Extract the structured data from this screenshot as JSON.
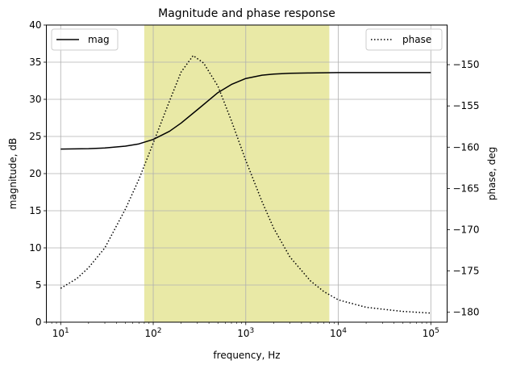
{
  "chart_data": {
    "type": "line",
    "title": "Magnitude and phase response",
    "xlabel": "frequency, Hz",
    "ylabel_left": "magnitude, dB",
    "ylabel_right": "phase, deg",
    "x_scale": "log",
    "xlim": [
      7,
      150000
    ],
    "ylim_left": [
      0,
      40
    ],
    "ylim_right": [
      -181.2,
      -145.2
    ],
    "grid": true,
    "x_ticks": [
      {
        "value": 10,
        "base": "10",
        "exp": "1"
      },
      {
        "value": 100,
        "base": "10",
        "exp": "2"
      },
      {
        "value": 1000,
        "base": "10",
        "exp": "3"
      },
      {
        "value": 10000,
        "base": "10",
        "exp": "4"
      },
      {
        "value": 100000,
        "base": "10",
        "exp": "5"
      }
    ],
    "y_ticks_left": [
      "0",
      "5",
      "10",
      "15",
      "20",
      "25",
      "30",
      "35",
      "40"
    ],
    "y_ticks_right": [
      "−150",
      "−155",
      "−160",
      "−165",
      "−170",
      "−175",
      "−180"
    ],
    "y_tick_values_right": [
      -150,
      -155,
      -160,
      -165,
      -170,
      -175,
      -180
    ],
    "highlight_band": {
      "x_from": 80,
      "x_to": 8000,
      "color": "#cfcf3a"
    },
    "legend_left": {
      "label": "mag",
      "placement": "upper-left"
    },
    "legend_right": {
      "label": "phase",
      "placement": "upper-right"
    },
    "series": [
      {
        "name": "mag",
        "axis": "left",
        "style": "solid",
        "x": [
          10,
          20,
          30,
          50,
          70,
          100,
          150,
          200,
          300,
          500,
          700,
          1000,
          1500,
          2000,
          3000,
          5000,
          10000,
          100000
        ],
        "y": [
          23.3,
          23.35,
          23.45,
          23.7,
          24.0,
          24.6,
          25.7,
          26.8,
          28.6,
          30.9,
          32.0,
          32.8,
          33.25,
          33.4,
          33.5,
          33.55,
          33.6,
          33.6
        ]
      },
      {
        "name": "phase",
        "axis": "right",
        "style": "dotted",
        "x": [
          10,
          15,
          20,
          30,
          50,
          70,
          100,
          150,
          200,
          270,
          350,
          500,
          700,
          1000,
          1500,
          2000,
          3000,
          5000,
          7000,
          10000,
          20000,
          50000,
          100000
        ],
        "y": [
          -177.1,
          -175.9,
          -174.6,
          -172.2,
          -167.5,
          -163.9,
          -159.5,
          -154.4,
          -150.9,
          -148.9,
          -149.8,
          -152.6,
          -156.8,
          -161.6,
          -166.6,
          -169.8,
          -173.3,
          -176.2,
          -177.5,
          -178.5,
          -179.4,
          -179.9,
          -180.1
        ]
      }
    ]
  }
}
